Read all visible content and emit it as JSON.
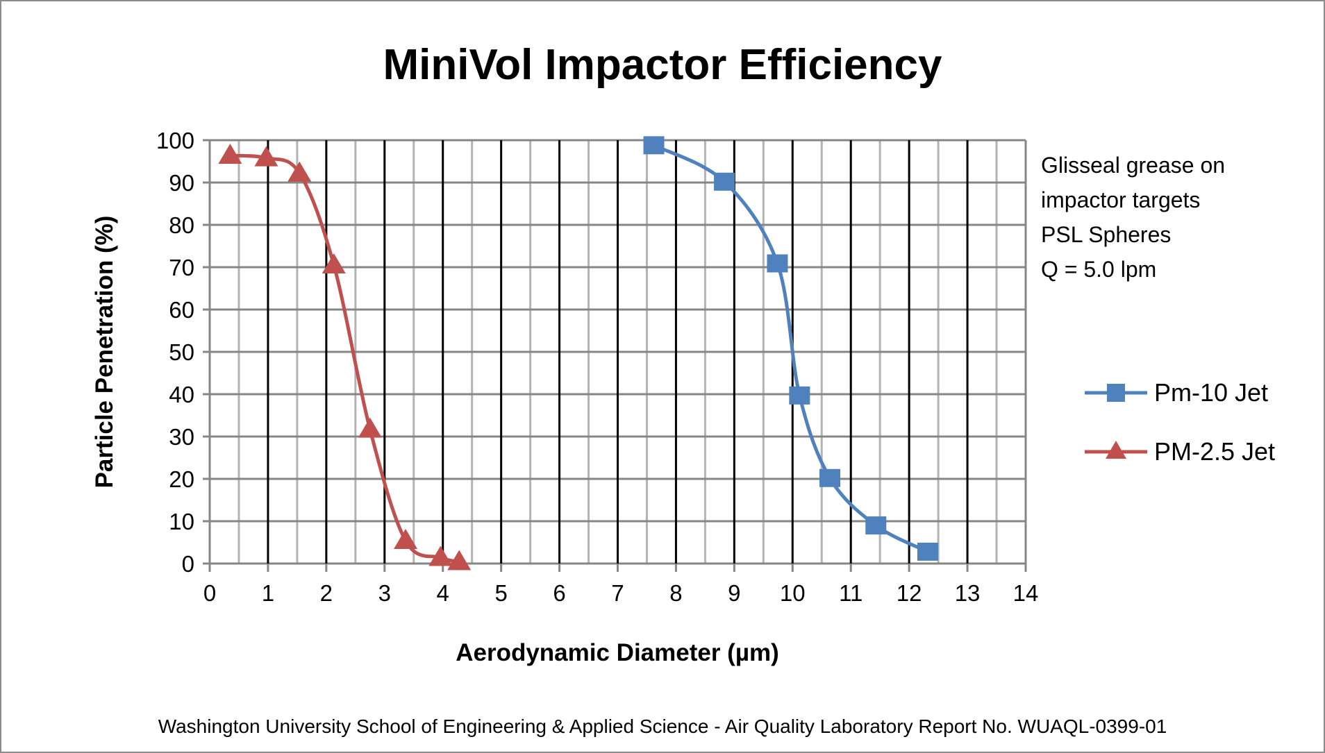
{
  "chart_data": {
    "type": "line",
    "title": "MiniVol Impactor Efficiency",
    "xlabel": "Aerodynamic Diameter (µm)",
    "ylabel": "Particle Penetration (%)",
    "xlim": [
      0,
      14
    ],
    "ylim": [
      0,
      100
    ],
    "x_ticks": [
      "0",
      "1",
      "2",
      "3",
      "4",
      "5",
      "6",
      "7",
      "8",
      "9",
      "10",
      "11",
      "12",
      "13",
      "14"
    ],
    "y_ticks": [
      "0",
      "10",
      "20",
      "30",
      "40",
      "50",
      "60",
      "70",
      "80",
      "90",
      "100"
    ],
    "grid": true,
    "smoothed": true,
    "legend_position": "right",
    "series": [
      {
        "name": "Pm-10 Jet",
        "color": "#4f81bd",
        "marker": "square",
        "x": [
          7.62,
          8.83,
          9.74,
          10.12,
          10.64,
          11.43,
          12.32
        ],
        "y": [
          98.8,
          90.2,
          70.9,
          39.7,
          20.2,
          9.0,
          2.8
        ]
      },
      {
        "name": "PM-2.5 Jet",
        "color": "#c0504d",
        "marker": "triangle",
        "x": [
          0.35,
          0.97,
          1.54,
          2.13,
          2.75,
          3.36,
          3.96,
          4.28
        ],
        "y": [
          96.4,
          95.8,
          92.2,
          70.5,
          31.7,
          5.4,
          1.4,
          0.4
        ]
      }
    ],
    "annotation": [
      "Glisseal grease  on",
      "impactor targets",
      "PSL Spheres",
      "Q = 5.0 lpm"
    ],
    "footer": "Washington University School of Engineering & Applied Science - Air Quality Laboratory Report No. WUAQL-0399-01"
  }
}
